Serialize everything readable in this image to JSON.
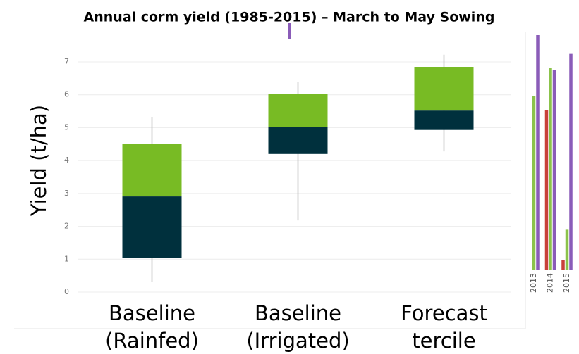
{
  "chart_data": [
    {
      "type": "box",
      "title": "Annual corm yield (1985-2015) – March to May Sowing",
      "ylabel": "Yield (t/ha)",
      "categories": [
        [
          "Baseline",
          "(Rainfed)"
        ],
        [
          "Baseline",
          "(Irrigated)"
        ],
        [
          "Forecast",
          "tercile"
        ]
      ],
      "boxes": [
        {
          "min": 0.32,
          "q1": 1.03,
          "median": 2.91,
          "q3": 4.5,
          "max": 5.33
        },
        {
          "min": 2.18,
          "q1": 4.2,
          "median": 5.01,
          "q3": 6.02,
          "max": 6.4
        },
        {
          "min": 4.28,
          "q1": 4.93,
          "median": 5.52,
          "q3": 6.85,
          "max": 7.22
        }
      ],
      "lower_color": "#00303d",
      "upper_color": "#78bb24",
      "whisker_color": "#b0b0b0",
      "ylim": [
        0,
        7
      ],
      "yticks": [
        0,
        1,
        2,
        3,
        4,
        5,
        6,
        7
      ],
      "grid": true
    },
    {
      "type": "bar",
      "categories": [
        "2013",
        "2014",
        "2015"
      ],
      "series": [
        {
          "name": "red",
          "color": "#c8403a",
          "values": [
            null,
            68,
            4
          ]
        },
        {
          "name": "green",
          "color": "#8bc34a",
          "values": [
            74,
            86,
            17
          ]
        },
        {
          "name": "purple",
          "color": "#8a5cb8",
          "values": [
            100,
            85,
            92
          ]
        }
      ],
      "ylim": [
        0,
        100
      ]
    }
  ]
}
